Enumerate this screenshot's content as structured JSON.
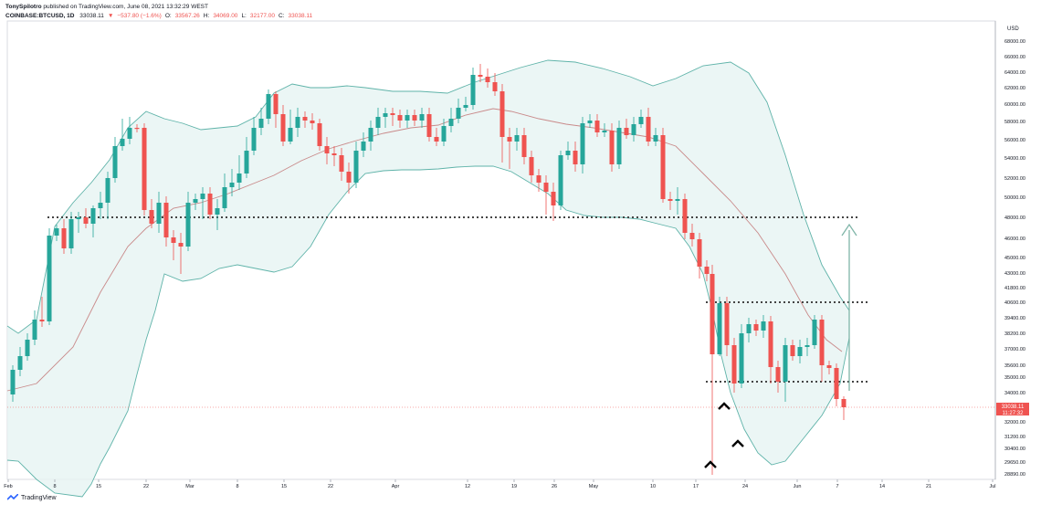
{
  "header": {
    "author": "TonySpilotro",
    "published": "published on TradingView.com, June 08, 2021 13:32:29 WEST",
    "symbol": "COINBASE:BTCUSD, 1D",
    "last": "33038.11",
    "change_arrow": "▼",
    "change": "−537.80 (−1.6%)",
    "o_label": "O:",
    "o": "33567.26",
    "h_label": "H:",
    "h": "34069.00",
    "l_label": "L:",
    "l": "32177.00",
    "c_label": "C:",
    "c": "33038.11"
  },
  "footer": {
    "brand": "TradingView",
    "logo_icon": "tradingview-logo-icon"
  },
  "colors": {
    "up": "#26a69a",
    "down": "#ef5350",
    "band": "#5fb3a9",
    "band_fill": "#e6f4f2",
    "basis": "#c98a8a",
    "arrow": "#7fb5a8"
  },
  "chart_data": {
    "type": "candlestick",
    "currency": "USD",
    "price_labels": [
      "70000.00",
      "68000.00",
      "66000.00",
      "64000.00",
      "62000.00",
      "60000.00",
      "58000.00",
      "56000.00",
      "54000.00",
      "52000.00",
      "50000.00",
      "48000.00",
      "46000.00",
      "45000.00",
      "43000.00",
      "41800.00",
      "40600.00",
      "39400.00",
      "38200.00",
      "37000.00",
      "35600.00",
      "35000.00",
      "34000.00",
      "33000.00",
      "32000.00",
      "31200.00",
      "30400.00",
      "29650.00",
      "28890.00"
    ],
    "last_price_label": "33038.11",
    "countdown_label": "11:27:32",
    "x_labels": [
      "Feb",
      "8",
      "15",
      "22",
      "Mar",
      "8",
      "15",
      "22",
      "Apr",
      "12",
      "19",
      "26",
      "May",
      "10",
      "17",
      "24",
      "Jun",
      "7",
      "14",
      "21",
      "Jul"
    ],
    "indicators": [
      "Bollinger Bands (20, 2)"
    ],
    "horizontal_levels": [
      48000,
      40500,
      34700
    ],
    "annotations": [
      "arrow up to 48000",
      "carets marking lows"
    ],
    "ylim": [
      28890,
      70000
    ]
  }
}
